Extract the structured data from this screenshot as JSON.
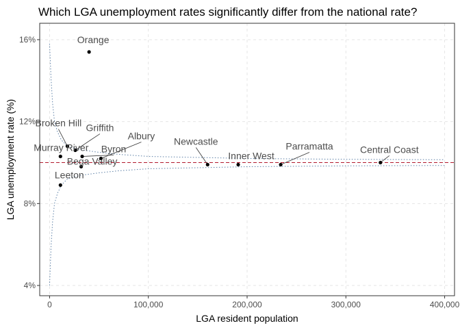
{
  "chart_data": {
    "type": "scatter",
    "title": "Which LGA unemployment rates significantly differ from the national rate?",
    "xlabel": "LGA resident population",
    "ylabel": "LGA unemployment rate (%)",
    "xlim": [
      -10000,
      410000
    ],
    "ylim": [
      3.5,
      16.8
    ],
    "x_ticks": [
      0,
      100000,
      200000,
      300000,
      400000
    ],
    "x_tick_labels": [
      "0",
      "100,000",
      "200,000",
      "300,000",
      "400,000"
    ],
    "y_ticks": [
      4,
      8,
      12,
      16
    ],
    "y_tick_labels": [
      "4%",
      "8%",
      "12%",
      "16%"
    ],
    "national_rate": 10.0,
    "grid": "dashed",
    "points": [
      {
        "label": "Orange",
        "x": 40000,
        "y": 15.4
      },
      {
        "label": "Broken Hill",
        "x": 18000,
        "y": 10.8
      },
      {
        "label": "Griffith",
        "x": 26000,
        "y": 10.6
      },
      {
        "label": "Murray River",
        "x": 11000,
        "y": 10.3
      },
      {
        "label": "Albury",
        "x": 52000,
        "y": 10.2
      },
      {
        "label": "Byron",
        "x": 33000,
        "y": 10.3
      },
      {
        "label": "Bega Valley",
        "x": 32000,
        "y": 9.8
      },
      {
        "label": "Leeton",
        "x": 11000,
        "y": 8.9
      },
      {
        "label": "Newcastle",
        "x": 160000,
        "y": 9.9
      },
      {
        "label": "Inner West",
        "x": 191000,
        "y": 9.9
      },
      {
        "label": "Parramatta",
        "x": 234000,
        "y": 9.9
      },
      {
        "label": "Central Coast",
        "x": 335000,
        "y": 10.0
      }
    ],
    "funnel": {
      "x": [
        0,
        1500,
        3000,
        5000,
        8000,
        12000,
        18000,
        25000,
        35000,
        50000,
        70000,
        100000,
        150000,
        200000,
        250000,
        300000,
        350000,
        400000
      ],
      "upper": [
        15.8,
        14.1,
        12.9,
        12.0,
        11.5,
        11.1,
        10.8,
        10.7,
        10.6,
        10.5,
        10.4,
        10.3,
        10.25,
        10.2,
        10.18,
        10.16,
        10.15,
        10.14
      ],
      "lower": [
        4.0,
        5.9,
        7.1,
        8.0,
        8.5,
        8.9,
        9.2,
        9.3,
        9.4,
        9.5,
        9.6,
        9.7,
        9.75,
        9.8,
        9.82,
        9.84,
        9.85,
        9.86
      ]
    },
    "colors": {
      "point": "#000000",
      "label": "#4d4d4d",
      "national_line": "#b2182b",
      "funnel": "#5b7fa6",
      "grid": "#e5e5e5",
      "axis": "#333333"
    }
  }
}
